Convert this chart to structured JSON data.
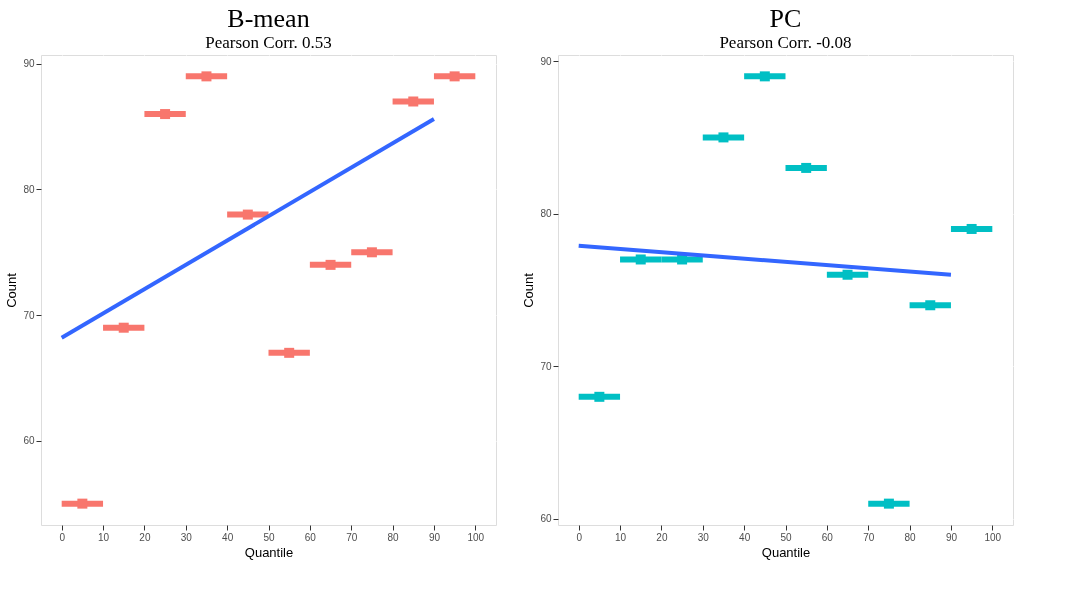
{
  "chart_data": [
    {
      "type": "scatter",
      "title": "B-mean",
      "subtitle": "Pearson Corr. 0.53",
      "xlabel": "Quantile",
      "ylabel": "Count",
      "xlim": [
        -5,
        105
      ],
      "xticks": [
        0,
        10,
        20,
        30,
        40,
        50,
        60,
        70,
        80,
        90,
        100
      ],
      "ylim": [
        53.3,
        90.7
      ],
      "yticks": [
        60,
        70,
        80,
        90
      ],
      "grid": true,
      "series": [
        {
          "type": "scatter",
          "color": "#f8766d",
          "x": [
            5,
            15,
            25,
            35,
            45,
            55,
            65,
            75,
            85,
            95
          ],
          "values": [
            55,
            69,
            86,
            89,
            78,
            67,
            74,
            75,
            87,
            89
          ],
          "xerrors": [
            5,
            5,
            5,
            5,
            5,
            5,
            5,
            5,
            5,
            5
          ]
        },
        {
          "type": "line",
          "color": "#3366ff",
          "x": [
            0,
            90
          ],
          "values": [
            68.2,
            85.6
          ]
        }
      ]
    },
    {
      "type": "scatter",
      "title": "PC",
      "subtitle": "Pearson Corr. -0.08",
      "xlabel": "Quantile",
      "ylabel": "Count",
      "xlim": [
        -5,
        105
      ],
      "xticks": [
        0,
        10,
        20,
        30,
        40,
        50,
        60,
        70,
        80,
        90,
        100
      ],
      "ylim": [
        59.6,
        90.4
      ],
      "yticks": [
        60,
        70,
        80,
        90
      ],
      "grid": true,
      "series": [
        {
          "type": "scatter",
          "color": "#00bfc4",
          "x": [
            5,
            15,
            25,
            35,
            45,
            55,
            65,
            75,
            85,
            95
          ],
          "values": [
            68,
            77,
            77,
            85,
            89,
            83,
            76,
            61,
            74,
            79
          ],
          "xerrors": [
            5,
            5,
            5,
            5,
            5,
            5,
            5,
            5,
            5,
            5
          ]
        },
        {
          "type": "line",
          "color": "#3366ff",
          "x": [
            0,
            90
          ],
          "values": [
            77.9,
            76.0
          ]
        }
      ]
    }
  ]
}
